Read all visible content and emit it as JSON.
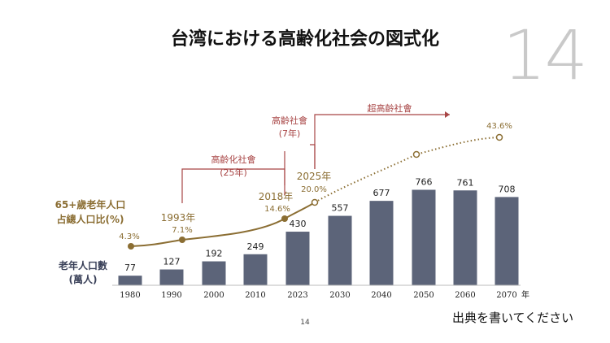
{
  "title": "台湾における高齢化社会の図式化",
  "slide_number_large": "14",
  "page_number": "14",
  "source_note": "出典を書いてください",
  "colors": {
    "bar": "#5c6479",
    "line": "#8b6e33",
    "annotation": "#a84545",
    "label_gold": "#8b6e33",
    "bar_label": "#3a4159"
  },
  "chart_data": {
    "type": "bar+line",
    "categories": [
      "1980",
      "1990",
      "2000",
      "2010",
      "2023",
      "2030",
      "2040",
      "2050",
      "2060",
      "2070"
    ],
    "x_unit": "年",
    "series": [
      {
        "name": "老年人口數\n(萬人)",
        "type": "bar",
        "values": [
          77,
          127,
          192,
          249,
          430,
          557,
          677,
          766,
          761,
          708
        ]
      },
      {
        "name": "65+歲老年人口\n占總人口比(%)",
        "type": "line",
        "x": [
          1980,
          1993,
          2018,
          2025,
          2050,
          2070
        ],
        "values": [
          4.3,
          7.1,
          14.6,
          20.0,
          null,
          43.6
        ],
        "projection_from": 2025
      }
    ],
    "line_labels": [
      {
        "year_label": "",
        "value_label": "4.3%"
      },
      {
        "year_label": "1993年",
        "value_label": "7.1%"
      },
      {
        "year_label": "2018年",
        "value_label": "14.6%"
      },
      {
        "year_label": "2025年",
        "value_label": "20.0%"
      },
      {
        "year_label": "",
        "value_label": ""
      },
      {
        "year_label": "",
        "value_label": "43.6%"
      }
    ],
    "annotations": {
      "aging": {
        "label": "高齡化社會",
        "sub": "(25年)"
      },
      "aged": {
        "label": "高齡社會",
        "sub": "(7年)"
      },
      "super_aged": {
        "label": "超高齡社會"
      }
    },
    "line_legend": "65+歲老年人口\n占總人口比(%)",
    "bar_legend": "老年人口數\n(萬人)"
  }
}
